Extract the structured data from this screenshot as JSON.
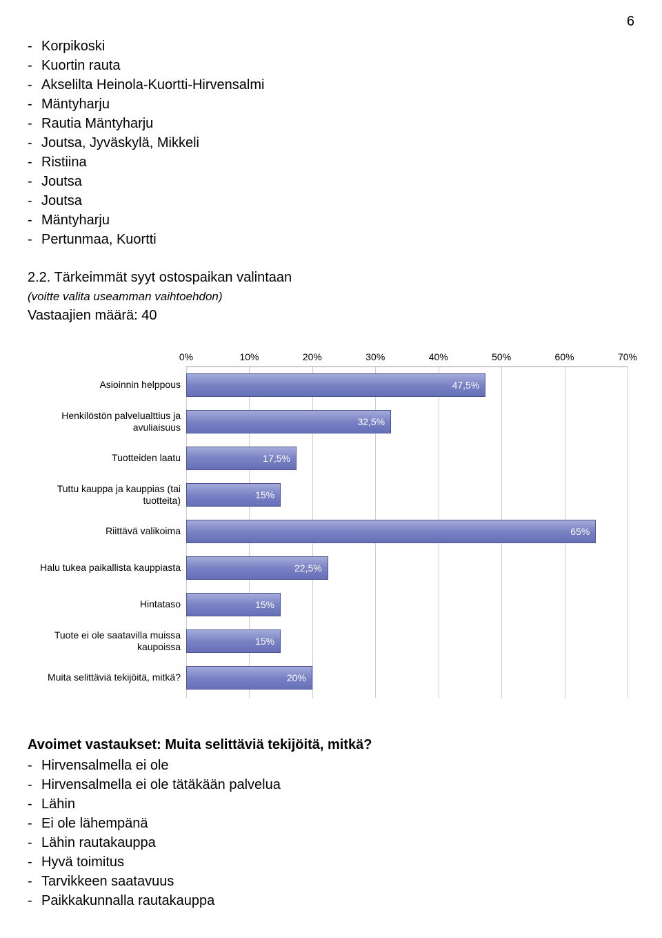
{
  "page_number": "6",
  "top_list": [
    "Korpikoski",
    "Kuortin rauta",
    "Akselilta Heinola-Kuortti-Hirvensalmi",
    "Mäntyharju",
    "Rautia Mäntyharju",
    "Joutsa, Jyväskylä, Mikkeli",
    "Ristiina",
    "Joutsa",
    "Joutsa",
    "Mäntyharju",
    "Pertunmaa, Kuortti"
  ],
  "section_title": "2.2. Tärkeimmät syyt ostospaikan valintaan",
  "section_note": "(voitte valita useamman vaihtoehdon)",
  "respondents": "Vastaajien määrä: 40",
  "chart": {
    "type": "bar",
    "x_axis": {
      "min": 0,
      "max": 70,
      "tick_step": 10,
      "tick_labels": [
        "0%",
        "10%",
        "20%",
        "30%",
        "40%",
        "50%",
        "60%",
        "70%"
      ]
    },
    "bar_fill_top": "#a5abd9",
    "bar_fill_mid": "#7a82c4",
    "bar_fill_bot": "#6670b8",
    "bar_border": "#4a5490",
    "grid_color": "#cccccc",
    "label_fontsize": 14,
    "value_color": "#ffffff",
    "rows": [
      {
        "label": "Asioinnin helppous",
        "value": 47.5,
        "text": "47,5%"
      },
      {
        "label": "Henkilöstön palvelualttius ja avuliaisuus",
        "value": 32.5,
        "text": "32,5%"
      },
      {
        "label": "Tuotteiden laatu",
        "value": 17.5,
        "text": "17,5%"
      },
      {
        "label": "Tuttu kauppa ja kauppias (tai tuotteita)",
        "value": 15,
        "text": "15%"
      },
      {
        "label": "Riittävä valikoima",
        "value": 65,
        "text": "65%"
      },
      {
        "label": "Halu tukea paikallista kauppiasta",
        "value": 22.5,
        "text": "22,5%"
      },
      {
        "label": "Hintataso",
        "value": 15,
        "text": "15%"
      },
      {
        "label": "Tuote ei ole saatavilla muissa kaupoissa",
        "value": 15,
        "text": "15%"
      },
      {
        "label": "Muita selittäviä tekijöitä, mitkä?",
        "value": 20,
        "text": "20%"
      }
    ]
  },
  "answers_title": "Avoimet vastaukset: Muita selittäviä tekijöitä, mitkä?",
  "answers_list": [
    "Hirvensalmella ei ole",
    "Hirvensalmella ei ole tätäkään palvelua",
    "Lähin",
    "Ei ole lähempänä",
    "Lähin rautakauppa",
    "Hyvä toimitus",
    "Tarvikkeen saatavuus",
    "Paikkakunnalla rautakauppa"
  ]
}
